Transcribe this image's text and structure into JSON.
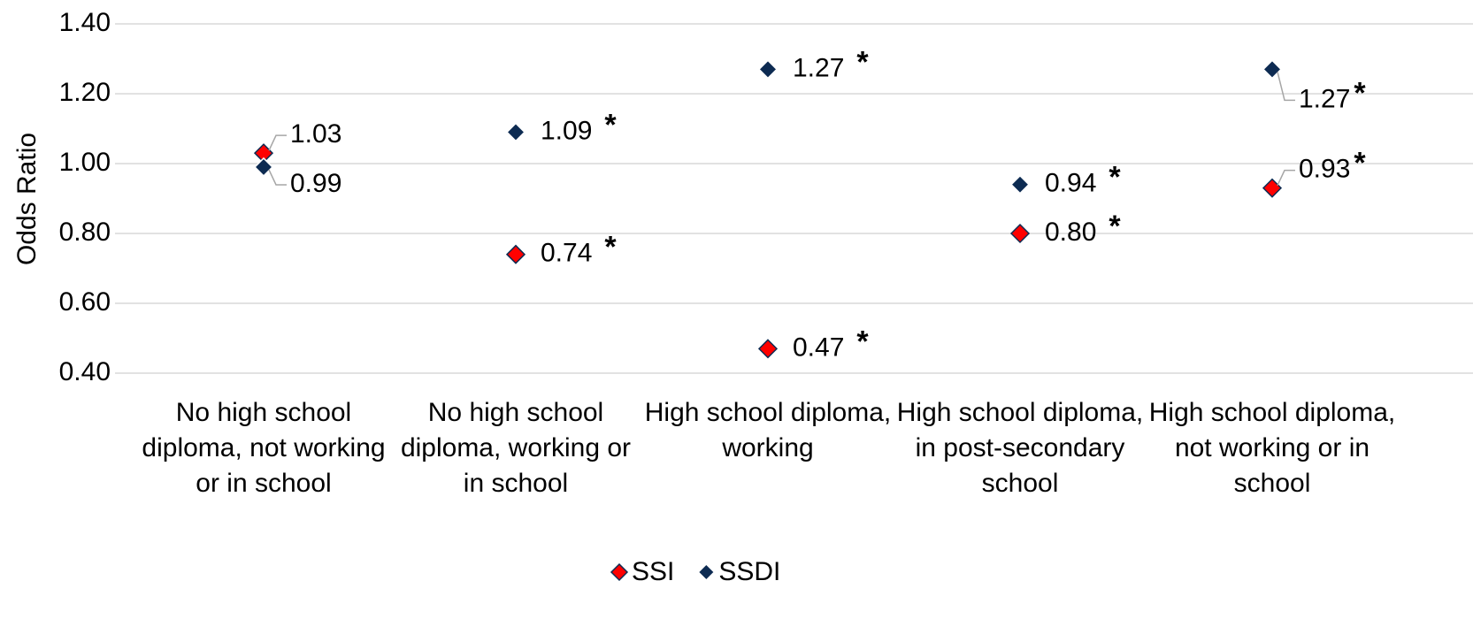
{
  "chart_data": {
    "type": "scatter",
    "y_label": "Odds Ratio",
    "categories": [
      "No high school diploma, not working or in school",
      "No high school diploma, working or in school",
      "High school diploma, working",
      "High school diploma, in post-secondary school",
      "High school diploma, not working or in school"
    ],
    "series": [
      {
        "name": "SSI",
        "color": "#ff0000",
        "values": [
          1.03,
          0.74,
          0.47,
          0.8,
          0.93
        ],
        "value_labels": [
          "1.03",
          "0.74",
          "0.47",
          "0.80",
          "0.93"
        ],
        "significance": [
          null,
          "*",
          "*",
          "*",
          "*"
        ]
      },
      {
        "name": "SSDI",
        "color": "#0d2b52",
        "values": [
          0.99,
          1.09,
          1.27,
          0.94,
          1.27
        ],
        "value_labels": [
          "0.99",
          "1.09",
          "1.27",
          "0.94",
          "1.27"
        ],
        "significance": [
          null,
          "*",
          "*",
          "*",
          "*"
        ]
      }
    ],
    "ylim": [
      0.4,
      1.4
    ],
    "yticks": [
      {
        "value": 0.4,
        "label": "0.40"
      },
      {
        "value": 0.6,
        "label": "0.60"
      },
      {
        "value": 0.8,
        "label": "0.80"
      },
      {
        "value": 1.0,
        "label": "1.00"
      },
      {
        "value": 1.2,
        "label": "1.20"
      },
      {
        "value": 1.4,
        "label": "1.40"
      }
    ],
    "grid": true,
    "legend": "bottom"
  }
}
